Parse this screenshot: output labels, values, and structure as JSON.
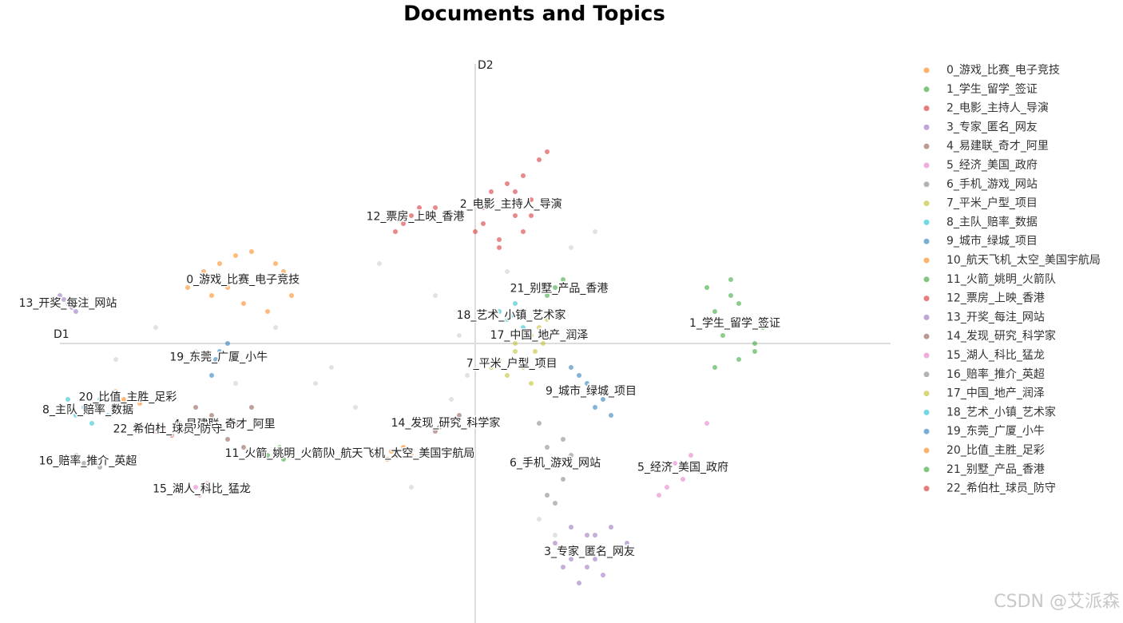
{
  "chart_data": {
    "type": "scatter",
    "title": "Documents and Topics",
    "xlabel": "D1",
    "ylabel": "D2",
    "watermark": "CSDN @艾派森",
    "xlim": [
      -52,
      52
    ],
    "ylim": [
      -35,
      37
    ],
    "background_points": {
      "color": "#cfcfcf",
      "x": [
        -45,
        -40,
        -30,
        -20,
        -15,
        -12,
        -5,
        -3,
        -2,
        -1,
        2,
        4,
        8,
        10,
        12,
        15,
        -18,
        -25,
        -35,
        -8
      ],
      "y": [
        -2,
        2,
        -5,
        -5,
        -8,
        10,
        6,
        -7,
        1,
        -4,
        -10,
        9,
        -22,
        -24,
        12,
        14,
        -3,
        2,
        -1,
        -18
      ]
    },
    "series": [
      {
        "name": "0_游戏_比赛_电子竞技",
        "color": "#ff7f0e",
        "x": [
          -36,
          -34,
          -32,
          -30,
          -28,
          -27,
          -25,
          -23,
          -29,
          -31,
          -26,
          -33,
          -24
        ],
        "y": [
          7,
          9,
          10,
          11,
          11.5,
          8,
          10,
          6,
          5,
          7,
          4,
          6,
          9
        ]
      },
      {
        "name": "1_学生_留学_签证",
        "color": "#2ca02c",
        "x": [
          29,
          30,
          31,
          32,
          33,
          34,
          35,
          36,
          32,
          30,
          33,
          35
        ],
        "y": [
          7,
          4,
          1,
          6,
          -2,
          3,
          0,
          2,
          8,
          -3,
          5,
          -1
        ]
      },
      {
        "name": "2_电影_主持人_导演",
        "color": "#d62728",
        "x": [
          0,
          1,
          2,
          3,
          4,
          5,
          6,
          7,
          8,
          9,
          3,
          6,
          5,
          1,
          7
        ],
        "y": [
          14,
          17,
          19,
          13,
          20,
          16,
          21,
          18,
          23,
          24,
          12,
          14,
          19,
          15,
          16
        ]
      },
      {
        "name": "3_专家_匿名_网友",
        "color": "#9467bd",
        "x": [
          10,
          11,
          12,
          13,
          14,
          15,
          16,
          17,
          18,
          19,
          12,
          15,
          14
        ],
        "y": [
          -25,
          -28,
          -23,
          -30,
          -24,
          -27,
          -29,
          -23,
          -26,
          -25,
          -27,
          -24,
          -28
        ]
      },
      {
        "name": "4_易建联_奇才_阿里",
        "color": "#8c564b",
        "x": [
          -35,
          -34,
          -33,
          -31,
          -30,
          -29,
          -28
        ],
        "y": [
          -8,
          -11,
          -9,
          -12,
          -10,
          -13,
          -8
        ]
      },
      {
        "name": "5_经济_美国_政府",
        "color": "#e377c2",
        "x": [
          23,
          25,
          26,
          27,
          28,
          29,
          24
        ],
        "y": [
          -19,
          -15,
          -17,
          -14,
          -16,
          -10,
          -18
        ]
      },
      {
        "name": "6_手机_游戏_网站",
        "color": "#7f7f7f",
        "x": [
          8,
          9,
          10,
          11,
          12,
          9,
          11,
          10
        ],
        "y": [
          -10,
          -13,
          -15,
          -17,
          -14,
          -19,
          -12,
          -20
        ]
      },
      {
        "name": "7_平米_户型_项目",
        "color": "#bcbd22",
        "x": [
          2,
          3,
          4,
          5,
          6,
          7,
          5
        ],
        "y": [
          -3,
          -2,
          -4,
          -1,
          -3,
          -5,
          0
        ]
      },
      {
        "name": "8_主队_赔率_数据",
        "color": "#17becf",
        "x": [
          -51,
          -50,
          -49,
          -48,
          -47,
          -46
        ],
        "y": [
          -7,
          -9,
          -8,
          -10,
          -7,
          -9
        ]
      },
      {
        "name": "9_城市_绿城_项目",
        "color": "#1f77b4",
        "x": [
          12,
          13,
          14,
          14.5,
          15,
          16,
          17
        ],
        "y": [
          -3,
          -4,
          -5,
          -6,
          -8,
          -7,
          -9
        ]
      },
      {
        "name": "10_航天飞机_太空_美国宇航局",
        "color": "#ff7f0e",
        "x": [
          -11,
          -10,
          -9,
          -8,
          -10.5
        ],
        "y": [
          -14.5,
          -14,
          -13,
          -14,
          -13.5
        ]
      },
      {
        "name": "11_火箭_姚明_火箭队",
        "color": "#2ca02c",
        "x": [
          -26,
          -25,
          -24,
          -23,
          -24.5
        ],
        "y": [
          -14,
          -13.5,
          -14.5,
          -14,
          -13
        ]
      },
      {
        "name": "12_票房_上映_香港",
        "color": "#d62728",
        "x": [
          -10,
          -9,
          -8,
          -7,
          -6,
          -5
        ],
        "y": [
          14,
          15,
          16,
          17,
          16,
          17
        ]
      },
      {
        "name": "13_开奖_每注_网站",
        "color": "#9467bd",
        "x": [
          -52,
          -51.5,
          -51,
          -50.5,
          -50
        ],
        "y": [
          6,
          5.5,
          5,
          4.5,
          4
        ]
      },
      {
        "name": "14_发现_研究_科学家",
        "color": "#8c564b",
        "x": [
          -5,
          -4,
          -3,
          -2,
          -4.5
        ],
        "y": [
          -11,
          -10,
          -9.5,
          -9,
          -10.5
        ]
      },
      {
        "name": "15_湖人_科比_猛龙",
        "color": "#e377c2",
        "x": [
          -35,
          -34.5,
          -34,
          -33.5
        ],
        "y": [
          -18,
          -19,
          -18.5,
          -17.5
        ]
      },
      {
        "name": "16_赔率_推介_英超",
        "color": "#7f7f7f",
        "x": [
          -50,
          -49,
          -48,
          -47
        ],
        "y": [
          -14,
          -15,
          -14.5,
          -15.5
        ]
      },
      {
        "name": "17_中国_地产_润泽",
        "color": "#bcbd22",
        "x": [
          7,
          8,
          9,
          8.5,
          7.5
        ],
        "y": [
          1,
          2,
          3,
          0,
          -1
        ]
      },
      {
        "name": "18_艺术_小镇_艺术家",
        "color": "#17becf",
        "x": [
          3,
          4,
          5,
          6,
          4.5
        ],
        "y": [
          4,
          3,
          5,
          2,
          3.5
        ]
      },
      {
        "name": "19_东莞_广厦_小牛",
        "color": "#1f77b4",
        "x": [
          -33,
          -32.5,
          -32,
          -31
        ],
        "y": [
          -4,
          -2,
          -1,
          0
        ]
      },
      {
        "name": "20_比值_主胜_足彩",
        "color": "#ff7f0e",
        "x": [
          -45,
          -44,
          -43,
          -42
        ],
        "y": [
          -6,
          -7,
          -6.5,
          -7.5
        ]
      },
      {
        "name": "21_别墅_产品_香港",
        "color": "#2ca02c",
        "x": [
          9,
          10,
          11,
          12
        ],
        "y": [
          6,
          7,
          8,
          6.5
        ]
      },
      {
        "name": "22_希伯杜_球员_防守",
        "color": "#d62728",
        "x": [
          -40,
          -39,
          -38,
          -37
        ],
        "y": [
          -11,
          -10.5,
          -11.5,
          -10
        ]
      }
    ]
  }
}
